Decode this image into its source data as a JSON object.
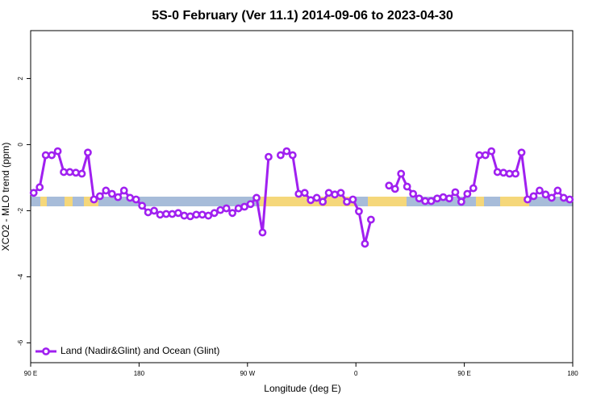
{
  "chart_data": {
    "type": "line",
    "title": "5S-0 February (Ver 11.1)   2014-09-06 to 2023-04-30",
    "x_label": "Longitude (deg E)",
    "y_label": "XCO2 - MLO trend (ppm)",
    "xlim": [
      90,
      540
    ],
    "ylim": [
      -6.6,
      3.45
    ],
    "xticks": [
      {
        "value": 90,
        "label": "90 E"
      },
      180,
      {
        "value": 270,
        "label": "90 W"
      },
      {
        "value": 360,
        "label": "0"
      },
      {
        "value": 450,
        "label": "90 E"
      },
      {
        "value": 540,
        "label": "180"
      }
    ],
    "yticks": [
      -6,
      -4,
      -2,
      0,
      2
    ],
    "legend": "bottom-left",
    "x": [
      92.5,
      97.5,
      102.5,
      107.5,
      112.5,
      117.5,
      122.5,
      127.5,
      132.5,
      137.5,
      142.5,
      147.5,
      152.5,
      157.5,
      162.5,
      167.5,
      172.5,
      177.5,
      182.5,
      187.5,
      192.5,
      197.5,
      202.5,
      207.5,
      212.5,
      217.5,
      222.5,
      227.5,
      232.5,
      237.5,
      242.5,
      247.5,
      252.5,
      257.5,
      262.5,
      267.5,
      272.5,
      277.5,
      282.5,
      287.5,
      292.5,
      297.5,
      302.5,
      307.5,
      312.5,
      317.5,
      322.5,
      327.5,
      332.5,
      337.5,
      342.5,
      347.5,
      352.5,
      357.5,
      362.5,
      367.5,
      372.5,
      377.5,
      382.5,
      387.5,
      392.5,
      397.5,
      402.5,
      407.5,
      412.5,
      417.5,
      422.5,
      427.5,
      432.5,
      437.5,
      442.5,
      447.5,
      452.5,
      457.5,
      462.5,
      467.5,
      472.5,
      477.5,
      482.5,
      487.5,
      492.5,
      497.5,
      502.5,
      507.5,
      512.5,
      517.5,
      522.5,
      527.5,
      532.5,
      537.5
    ],
    "series": [
      {
        "name": "Land (Nadir&Glint) and Ocean (Glint)",
        "color": "#a020f0",
        "values": [
          -1.46,
          -1.29,
          -0.32,
          -0.32,
          -0.2,
          -0.83,
          -0.83,
          -0.85,
          -0.88,
          -0.24,
          -1.66,
          -1.56,
          -1.39,
          -1.49,
          -1.59,
          -1.39,
          -1.61,
          -1.66,
          -1.85,
          -2.05,
          -2.0,
          -2.12,
          -2.1,
          -2.1,
          -2.07,
          -2.15,
          -2.17,
          -2.12,
          -2.12,
          -2.15,
          -2.07,
          -1.98,
          -1.93,
          -2.07,
          -1.93,
          -1.88,
          -1.8,
          -1.61,
          -2.66,
          -0.37,
          null,
          -0.32,
          -0.2,
          -0.32,
          -1.49,
          -1.46,
          -1.68,
          -1.61,
          -1.73,
          -1.46,
          -1.51,
          -1.46,
          -1.73,
          -1.66,
          -2.02,
          -3.0,
          -2.27,
          null,
          null,
          -1.24,
          -1.34,
          -0.88,
          -1.27,
          -1.49,
          -1.63,
          -1.71,
          -1.71,
          -1.63,
          -1.59,
          -1.63,
          -1.44,
          -1.73,
          -1.49,
          -1.32,
          -0.32,
          -0.32,
          -0.2,
          -0.83,
          -0.85,
          -0.88,
          -0.88,
          -0.24,
          -1.66,
          -1.56,
          -1.39,
          -1.51,
          -1.61,
          -1.39,
          -1.61,
          -1.66
        ]
      }
    ]
  }
}
